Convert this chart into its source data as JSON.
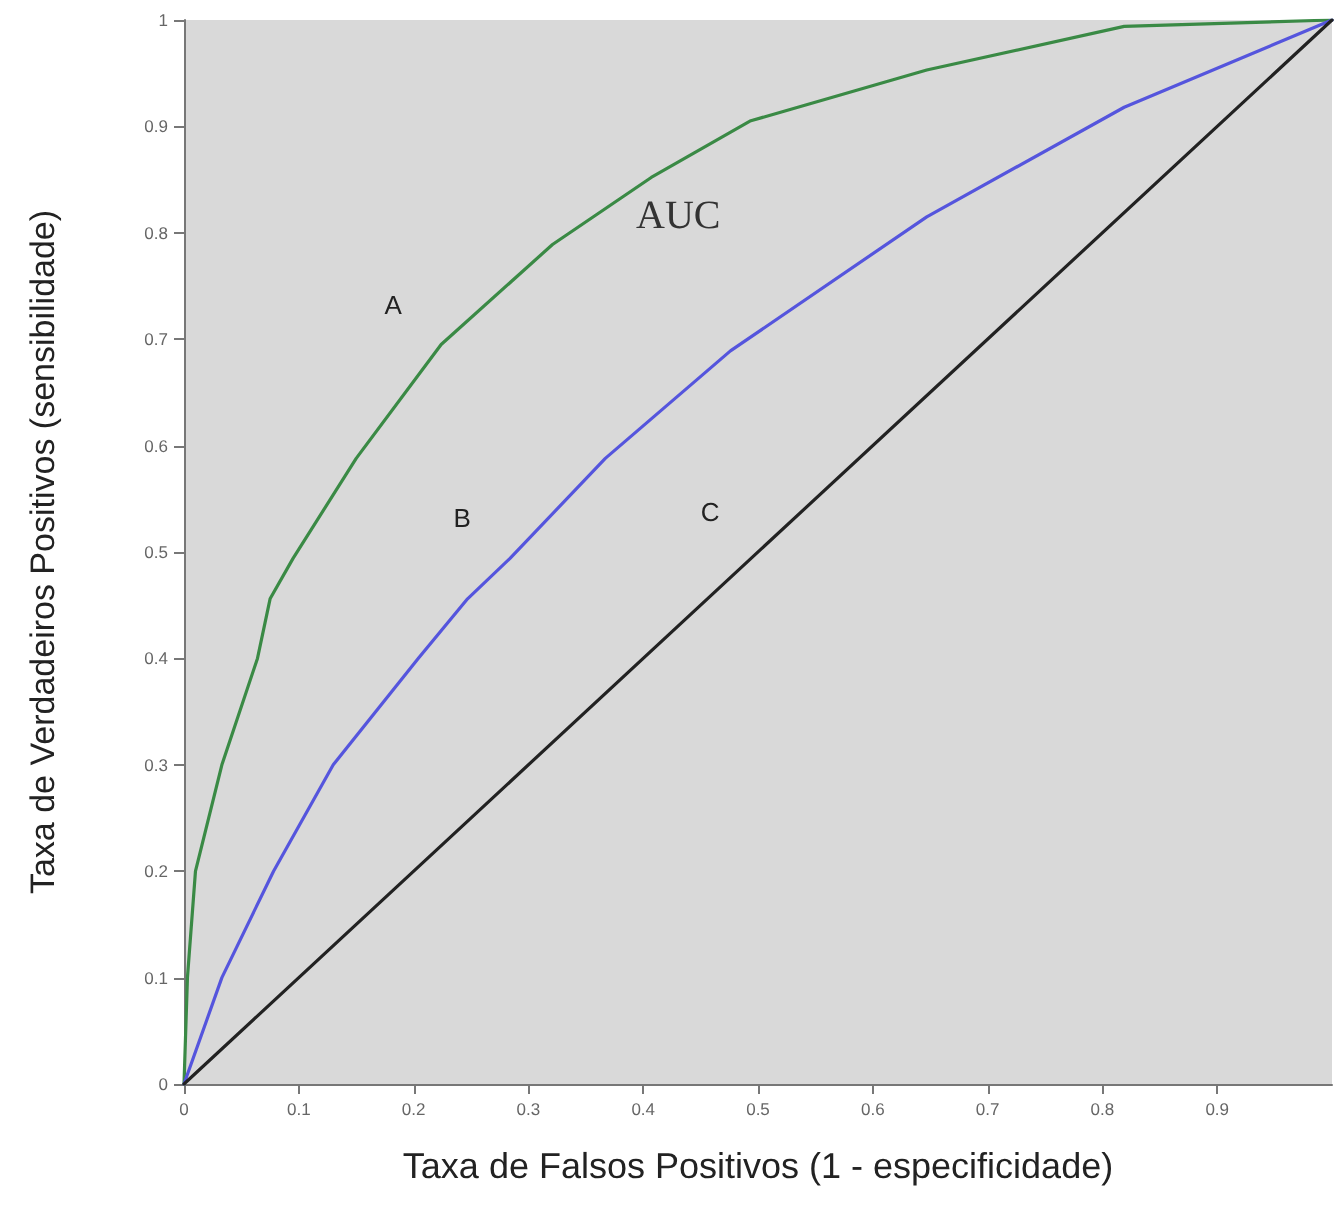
{
  "chart_data": {
    "type": "line",
    "xlabel": "Taxa de Falsos Positivos (1 - especificidade)",
    "ylabel": "Taxa de Verdadeiros Positivos (sensibilidade)",
    "xlim": [
      0,
      1
    ],
    "ylim": [
      0,
      1
    ],
    "xticks": [
      0,
      0.1,
      0.2,
      0.3,
      0.4,
      0.5,
      0.6,
      0.7,
      0.8,
      0.9
    ],
    "yticks": [
      0,
      0.1,
      0.2,
      0.3,
      0.4,
      0.5,
      0.6,
      0.7,
      0.8,
      0.9,
      1
    ],
    "grid": false,
    "legend": false,
    "marker": "none",
    "line_style": "solid",
    "annotations": [
      "AUC"
    ],
    "series": [
      {
        "name": "A",
        "color": "#3a8a45",
        "x": [
          0,
          0.003,
          0.01,
          0.033,
          0.064,
          0.075,
          0.095,
          0.15,
          0.224,
          0.321,
          0.407,
          0.493,
          0.647,
          0.819,
          1
        ],
        "values": [
          0,
          0.1,
          0.2,
          0.3,
          0.4,
          0.456,
          0.494,
          0.588,
          0.695,
          0.789,
          0.852,
          0.905,
          0.953,
          0.994,
          1
        ]
      },
      {
        "name": "B",
        "color": "#5555dd",
        "x": [
          0,
          0.033,
          0.078,
          0.13,
          0.204,
          0.247,
          0.284,
          0.367,
          0.476,
          0.647,
          0.819,
          1
        ],
        "values": [
          0,
          0.1,
          0.2,
          0.3,
          0.4,
          0.456,
          0.494,
          0.588,
          0.689,
          0.815,
          0.918,
          1
        ]
      },
      {
        "name": "C",
        "color": "#222222",
        "x": [
          0,
          1
        ],
        "values": [
          0,
          1
        ]
      }
    ]
  }
}
